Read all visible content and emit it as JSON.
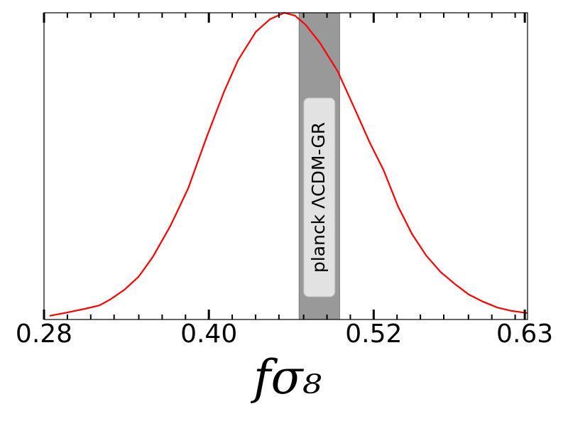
{
  "chart_data": {
    "type": "line",
    "xlabel": "fσ₈",
    "xlim": [
      0.28,
      0.632
    ],
    "ylim": [
      0,
      1
    ],
    "xticks": [
      0.28,
      {
        "value": 0.4,
        "label": "0.40"
      },
      0.52,
      0.63
    ],
    "xminorticks": [
      0.297,
      0.314,
      0.331,
      0.349,
      0.366,
      0.383,
      0.417,
      0.434,
      0.451,
      0.469,
      0.486,
      0.503,
      0.537,
      0.554,
      0.571,
      0.589,
      0.606,
      0.623
    ],
    "band": {
      "label": "planck ΛCDM-GR",
      "range": [
        0.4657,
        0.4952
      ],
      "color": "#999999"
    },
    "series": [
      {
        "color": "#ff0000",
        "x": [
          0.2841,
          0.2971,
          0.31,
          0.3204,
          0.3281,
          0.3385,
          0.3488,
          0.3592,
          0.3721,
          0.385,
          0.398,
          0.4109,
          0.4212,
          0.4342,
          0.4445,
          0.4549,
          0.4626,
          0.4704,
          0.4807,
          0.4937,
          0.5066,
          0.5169,
          0.5273,
          0.5376,
          0.548,
          0.5583,
          0.5687,
          0.579,
          0.5894,
          0.5997,
          0.6101,
          0.6204,
          0.6318
        ],
        "values": [
          0.012,
          0.023,
          0.035,
          0.046,
          0.065,
          0.097,
          0.139,
          0.204,
          0.306,
          0.428,
          0.59,
          0.741,
          0.845,
          0.938,
          0.979,
          1.0,
          0.991,
          0.961,
          0.903,
          0.81,
          0.683,
          0.579,
          0.486,
          0.37,
          0.278,
          0.208,
          0.155,
          0.116,
          0.081,
          0.058,
          0.039,
          0.028,
          0.021
        ]
      }
    ]
  }
}
